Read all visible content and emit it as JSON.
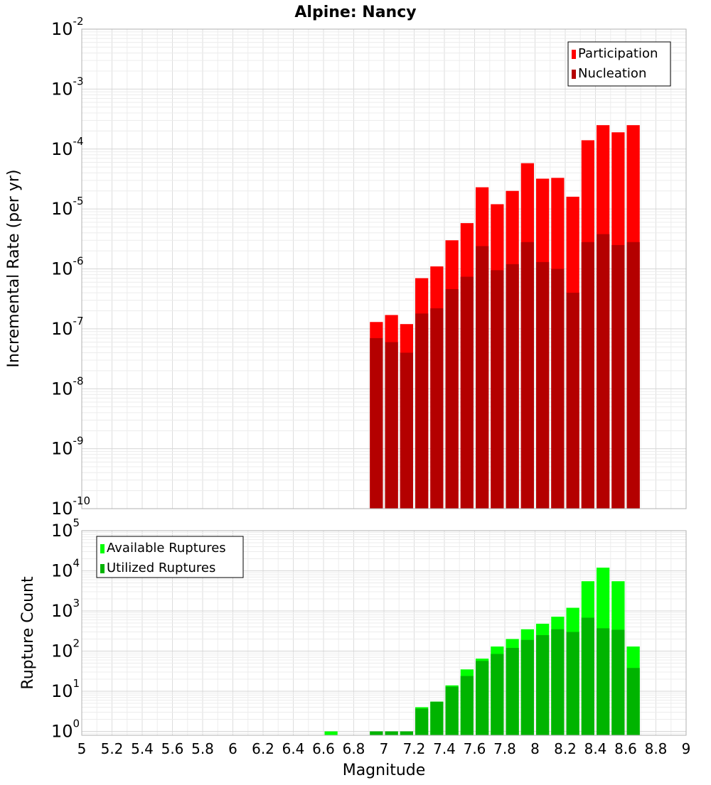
{
  "title": "Alpine: Nancy",
  "xlabel": "Magnitude",
  "chart_data": [
    {
      "type": "bar",
      "scale": "log",
      "ylabel": "Incremental Rate (per yr)",
      "ylim": [
        1e-10,
        0.01
      ],
      "xlim": [
        5,
        9
      ],
      "grid": true,
      "legend_placement": "top-right",
      "bin_width": 0.1,
      "series": [
        {
          "name": "Participation",
          "color": "#ff0000",
          "x": [
            6.95,
            7.05,
            7.15,
            7.25,
            7.35,
            7.45,
            7.55,
            7.65,
            7.75,
            7.85,
            7.95,
            8.05,
            8.15,
            8.25,
            8.35,
            8.45,
            8.55,
            8.65
          ],
          "values": [
            1.3e-07,
            1.7e-07,
            1.2e-07,
            7e-07,
            1.1e-06,
            3e-06,
            5.8e-06,
            2.3e-05,
            1.2e-05,
            2e-05,
            5.8e-05,
            3.2e-05,
            3.3e-05,
            1.6e-05,
            0.00014,
            0.00025,
            0.00019,
            0.00025
          ]
        },
        {
          "name": "Nucleation",
          "color": "#b40000",
          "x": [
            6.95,
            7.05,
            7.15,
            7.25,
            7.35,
            7.45,
            7.55,
            7.65,
            7.75,
            7.85,
            7.95,
            8.05,
            8.15,
            8.25,
            8.35,
            8.45,
            8.55,
            8.65
          ],
          "values": [
            7e-08,
            6e-08,
            4e-08,
            1.8e-07,
            2.2e-07,
            4.6e-07,
            7.4e-07,
            2.4e-06,
            9.5e-07,
            1.2e-06,
            2.8e-06,
            1.3e-06,
            1e-06,
            4e-07,
            2.8e-06,
            3.8e-06,
            2.5e-06,
            2.8e-06
          ]
        }
      ]
    },
    {
      "type": "bar",
      "scale": "log",
      "ylabel": "Rupture Count",
      "ylim": [
        0.8,
        100000.0
      ],
      "xlim": [
        5,
        9
      ],
      "grid": true,
      "legend_placement": "top-left",
      "bin_width": 0.1,
      "series": [
        {
          "name": "Available Ruptures",
          "color": "#00ff00",
          "x": [
            6.65,
            6.95,
            7.05,
            7.15,
            7.25,
            7.35,
            7.45,
            7.55,
            7.65,
            7.75,
            7.85,
            7.95,
            8.05,
            8.15,
            8.25,
            8.35,
            8.45,
            8.55,
            8.65
          ],
          "values": [
            1,
            1,
            1,
            1,
            4,
            5.5,
            14,
            35,
            65,
            130,
            200,
            350,
            480,
            720,
            1200,
            5500,
            12000,
            5500,
            130
          ]
        },
        {
          "name": "Utilized Ruptures",
          "color": "#00b400",
          "x": [
            6.95,
            7.05,
            7.15,
            7.25,
            7.35,
            7.45,
            7.55,
            7.65,
            7.75,
            7.85,
            7.95,
            8.05,
            8.15,
            8.25,
            8.35,
            8.45,
            8.55,
            8.65
          ],
          "values": [
            1,
            1,
            1,
            3.7,
            5.5,
            13,
            24,
            57,
            85,
            120,
            190,
            250,
            350,
            300,
            680,
            370,
            340,
            38
          ]
        }
      ]
    }
  ],
  "x_ticks": [
    "5",
    "5.2",
    "5.4",
    "5.6",
    "5.8",
    "6",
    "6.2",
    "6.4",
    "6.6",
    "6.8",
    "7",
    "7.2",
    "7.4",
    "7.6",
    "7.8",
    "8",
    "8.2",
    "8.4",
    "8.6",
    "8.8",
    "9"
  ],
  "top_y_ticks": [
    {
      "base": "10",
      "exp": "-2"
    },
    {
      "base": "10",
      "exp": "-3"
    },
    {
      "base": "10",
      "exp": "-4"
    },
    {
      "base": "10",
      "exp": "-5"
    },
    {
      "base": "10",
      "exp": "-6"
    },
    {
      "base": "10",
      "exp": "-7"
    },
    {
      "base": "10",
      "exp": "-8"
    },
    {
      "base": "10",
      "exp": "-9"
    },
    {
      "base": "10",
      "exp": "-10"
    }
  ],
  "bottom_y_ticks": [
    {
      "base": "10",
      "exp": "5"
    },
    {
      "base": "10",
      "exp": "4"
    },
    {
      "base": "10",
      "exp": "3"
    },
    {
      "base": "10",
      "exp": "2"
    },
    {
      "base": "10",
      "exp": "1"
    },
    {
      "base": "10",
      "exp": "0"
    }
  ]
}
